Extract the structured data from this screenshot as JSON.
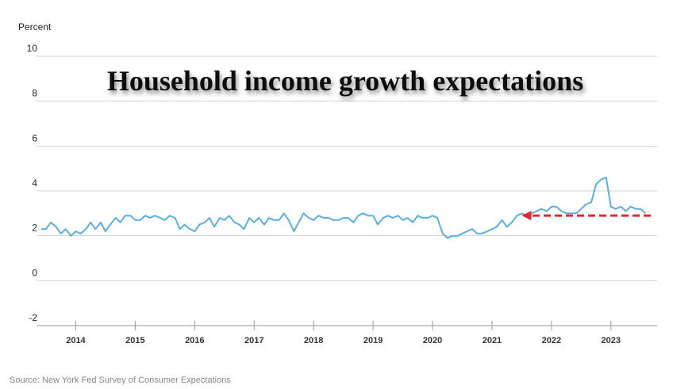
{
  "chart_data": {
    "type": "line",
    "title": "Household income growth expectations",
    "ylabel": "Percent",
    "xlabel": "",
    "source": "Source: New York Fed Survey of Consumer Expectations",
    "ylim": [
      -2,
      10
    ],
    "yticks": [
      10,
      8,
      6,
      4,
      2,
      0,
      -2
    ],
    "xlim": [
      2013.42,
      2023.67
    ],
    "xticks": [
      {
        "label": "2014",
        "x": 2014.0
      },
      {
        "label": "2015",
        "x": 2015.0
      },
      {
        "label": "2016",
        "x": 2016.0
      },
      {
        "label": "2017",
        "x": 2017.0
      },
      {
        "label": "2018",
        "x": 2018.0
      },
      {
        "label": "2019",
        "x": 2019.0
      },
      {
        "label": "2020",
        "x": 2020.0
      },
      {
        "label": "2021",
        "x": 2021.0
      },
      {
        "label": "2022",
        "x": 2022.0
      },
      {
        "label": "2023",
        "x": 2023.0
      }
    ],
    "grid": true,
    "legend": "none",
    "series_color": "#5aaee0",
    "annotation": {
      "type": "dashed-arrow",
      "color": "#e8262b",
      "from": [
        2023.67,
        2.9
      ],
      "to": [
        2021.5,
        2.9
      ]
    },
    "series": [
      {
        "x": [
          2013.42,
          2013.5,
          2013.58,
          2013.67,
          2013.75,
          2013.83,
          2013.92,
          2014.0,
          2014.08,
          2014.17,
          2014.25,
          2014.33,
          2014.42,
          2014.5,
          2014.58,
          2014.67,
          2014.75,
          2014.83,
          2014.92,
          2015.0,
          2015.08,
          2015.17,
          2015.25,
          2015.33,
          2015.42,
          2015.5,
          2015.58,
          2015.67,
          2015.75,
          2015.83,
          2015.92,
          2016.0,
          2016.08,
          2016.17,
          2016.25,
          2016.33,
          2016.42,
          2016.5,
          2016.58,
          2016.67,
          2016.75,
          2016.83,
          2016.92,
          2017.0,
          2017.08,
          2017.17,
          2017.25,
          2017.33,
          2017.42,
          2017.5,
          2017.58,
          2017.67,
          2017.75,
          2017.83,
          2017.92,
          2018.0,
          2018.08,
          2018.17,
          2018.25,
          2018.33,
          2018.42,
          2018.5,
          2018.58,
          2018.67,
          2018.75,
          2018.83,
          2018.92,
          2019.0,
          2019.08,
          2019.17,
          2019.25,
          2019.33,
          2019.42,
          2019.5,
          2019.58,
          2019.67,
          2019.75,
          2019.83,
          2019.92,
          2020.0,
          2020.08,
          2020.17,
          2020.25,
          2020.33,
          2020.42,
          2020.5,
          2020.58,
          2020.67,
          2020.75,
          2020.83,
          2020.92,
          2021.0,
          2021.08,
          2021.17,
          2021.25,
          2021.33,
          2021.42,
          2021.5,
          2021.58,
          2021.67,
          2021.75,
          2021.83,
          2021.92,
          2022.0,
          2022.08,
          2022.17,
          2022.25,
          2022.33,
          2022.42,
          2022.5,
          2022.58,
          2022.67,
          2022.75,
          2022.83,
          2022.92,
          2023.0,
          2023.08,
          2023.17,
          2023.25,
          2023.33,
          2023.42,
          2023.5,
          2023.58
        ],
        "values": [
          2.3,
          2.3,
          2.6,
          2.4,
          2.1,
          2.3,
          2.0,
          2.2,
          2.1,
          2.3,
          2.6,
          2.3,
          2.6,
          2.2,
          2.5,
          2.8,
          2.6,
          2.9,
          2.9,
          2.7,
          2.7,
          2.9,
          2.8,
          2.9,
          2.8,
          2.7,
          2.9,
          2.8,
          2.3,
          2.5,
          2.3,
          2.2,
          2.5,
          2.6,
          2.8,
          2.4,
          2.8,
          2.7,
          2.9,
          2.6,
          2.5,
          2.3,
          2.8,
          2.6,
          2.8,
          2.5,
          2.8,
          2.7,
          2.7,
          3.0,
          2.7,
          2.2,
          2.6,
          3.0,
          2.8,
          2.7,
          2.9,
          2.8,
          2.8,
          2.7,
          2.7,
          2.8,
          2.8,
          2.6,
          2.9,
          3.0,
          2.9,
          2.9,
          2.5,
          2.8,
          2.9,
          2.8,
          2.9,
          2.7,
          2.8,
          2.6,
          2.9,
          2.8,
          2.8,
          2.9,
          2.8,
          2.1,
          1.9,
          2.0,
          2.0,
          2.1,
          2.2,
          2.3,
          2.1,
          2.1,
          2.2,
          2.3,
          2.4,
          2.7,
          2.4,
          2.6,
          2.9,
          3.0,
          2.9,
          3.0,
          3.1,
          3.2,
          3.1,
          3.3,
          3.3,
          3.1,
          3.0,
          3.0,
          3.0,
          3.2,
          3.4,
          3.5,
          4.3,
          4.5,
          4.6,
          3.3,
          3.2,
          3.3,
          3.1,
          3.3,
          3.2,
          3.2,
          3.0
        ]
      }
    ]
  }
}
